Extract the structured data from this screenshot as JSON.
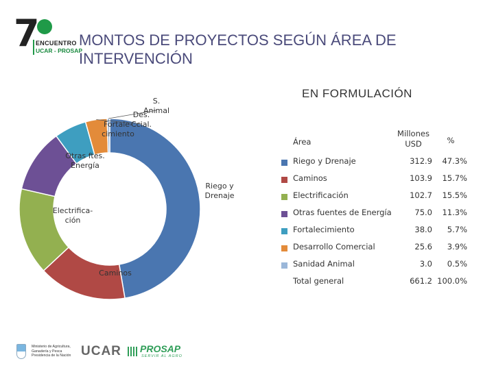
{
  "logo": {
    "number": "7",
    "line1": "ENCUENTRO",
    "line2": "UCAR - PROSAP",
    "accent": "#1f9a48"
  },
  "title": "MONTOS DE PROYECTOS SEGÚN ÁREA DE INTERVENCIÓN",
  "section_title": "EN FORMULACIÓN",
  "table": {
    "headers": {
      "area": "Área",
      "usd": "Millones USD",
      "pct": "%"
    },
    "rows": [
      {
        "area": "Riego y Drenaje",
        "usd": "312.9",
        "pct": "47.3%",
        "color": "#4a76b0"
      },
      {
        "area": "Caminos",
        "usd": "103.9",
        "pct": "15.7%",
        "color": "#b04945"
      },
      {
        "area": "Electrificación",
        "usd": "102.7",
        "pct": "15.5%",
        "color": "#93b050"
      },
      {
        "area": "Otras fuentes de Energía",
        "usd": "75.0",
        "pct": "11.3%",
        "color": "#6d5095"
      },
      {
        "area": "Fortalecimiento",
        "usd": "38.0",
        "pct": "5.7%",
        "color": "#3e9ec0"
      },
      {
        "area": "Desarrollo Comercial",
        "usd": "25.6",
        "pct": "3.9%",
        "color": "#e38b3a"
      },
      {
        "area": "Sanidad Animal",
        "usd": "3.0",
        "pct": "0.5%",
        "color": "#9bb7d9"
      }
    ],
    "total": {
      "area": "Total general",
      "usd": "661.2",
      "pct": "100.0%"
    }
  },
  "chart_data": {
    "type": "pie",
    "donut": true,
    "categories": [
      "Riego y Drenaje",
      "Caminos",
      "Electrificación",
      "Otras fuentes de Energía",
      "Fortalecimiento",
      "Desarrollo Comercial",
      "Sanidad Animal"
    ],
    "values": [
      312.9,
      103.9,
      102.7,
      75.0,
      38.0,
      25.6,
      3.0
    ],
    "slice_labels": [
      "Riego y Drenaje",
      "Caminos",
      "Electrifica-ción",
      "Otras ftes. Energía",
      "Fortale-cimiento",
      "Des. Ccial.",
      "S. Animal"
    ],
    "colors": [
      "#4a76b0",
      "#b04945",
      "#93b050",
      "#6d5095",
      "#3e9ec0",
      "#e38b3a",
      "#9bb7d9"
    ],
    "start": "12 o'clock",
    "direction": "clockwise"
  },
  "footer": {
    "ministry": "Ministerio de Agricultura, Ganadería y Pesca Presidencia de la Nación",
    "ucar": "UCAR",
    "prosap": "PROSAP",
    "prosap_sub": "SERVIR AL AGRO"
  }
}
